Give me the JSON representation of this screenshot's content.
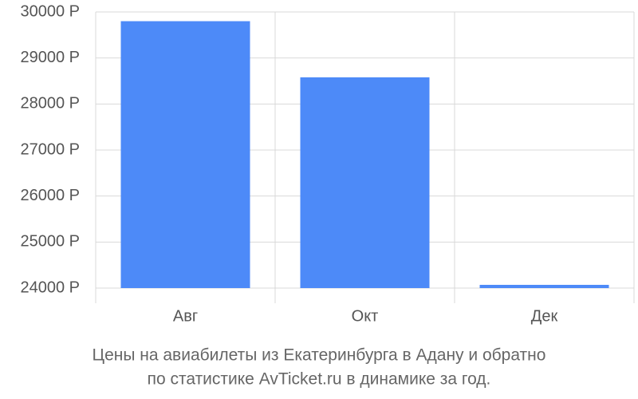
{
  "chart_data": {
    "type": "bar",
    "title": [
      "Цены на авиабилеты из Екатеринбурга в Адану и обратно",
      "по статистике AvTicket.ru в динамике за год."
    ],
    "categories": [
      "Авг",
      "Окт",
      "Дек"
    ],
    "values": [
      29800,
      28580,
      24070
    ],
    "color": "#4d8af8",
    "ylim": [
      24000,
      30000
    ],
    "yticks": [
      {
        "value": 24000,
        "label": "24000 Р"
      },
      {
        "value": 25000,
        "label": "25000 Р"
      },
      {
        "value": 26000,
        "label": "26000 Р"
      },
      {
        "value": 27000,
        "label": "27000 Р"
      },
      {
        "value": 28000,
        "label": "28000 Р"
      },
      {
        "value": 29000,
        "label": "29000 Р"
      },
      {
        "value": 30000,
        "label": "30000 Р"
      }
    ],
    "grid": true
  }
}
